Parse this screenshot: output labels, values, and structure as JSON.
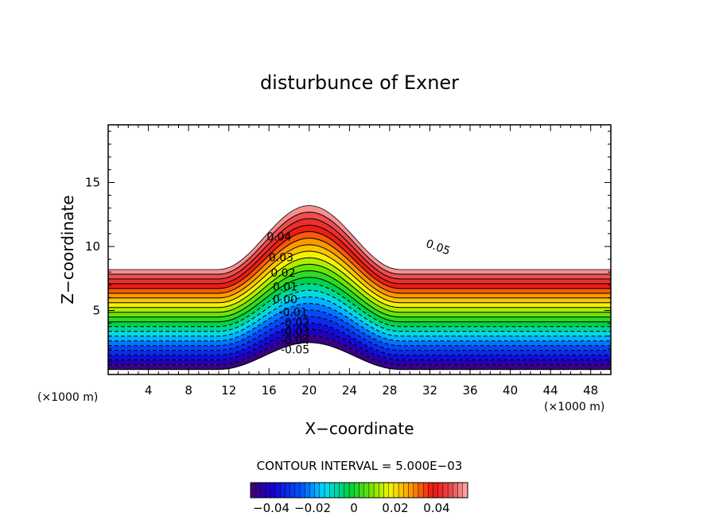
{
  "chart_data": {
    "type": "contour",
    "title": "disturbunce of Exner",
    "xlabel": "X−coordinate",
    "ylabel": "Z−coordinate",
    "x_unit": "(×1000 m)",
    "y_unit": "(×1000 m)",
    "xlim": [
      0,
      50
    ],
    "ylim": [
      0,
      19.5
    ],
    "x_ticks": [
      4,
      8,
      12,
      16,
      20,
      24,
      28,
      32,
      36,
      40,
      44,
      48
    ],
    "y_ticks": [
      5,
      10,
      15
    ],
    "contour_interval_label": "CONTOUR INTERVAL = 5.000E−03",
    "contour_interval": 0.005,
    "value_range": [
      -0.05,
      0.055
    ],
    "terrain": {
      "baseline_km": 0.4,
      "peak_height_km": 2.1,
      "peak_x_km": 20,
      "half_width_km": 9
    },
    "field_top": {
      "level_at_edges_km": 8.2,
      "level_at_peak_km": 13.2
    },
    "contour_labels": [
      {
        "text": "0.04",
        "x": 17.0,
        "z": 10.7
      },
      {
        "text": "0.03",
        "x": 17.2,
        "z": 9.1
      },
      {
        "text": "0.02",
        "x": 17.4,
        "z": 7.9
      },
      {
        "text": "0.01",
        "x": 17.6,
        "z": 6.8
      },
      {
        "text": "0.00",
        "x": 17.6,
        "z": 5.8
      },
      {
        "text": "-0.01",
        "x": 18.4,
        "z": 4.8
      },
      {
        "text": "-0.02",
        "x": 18.6,
        "z": 4.0
      },
      {
        "text": "-0.03",
        "x": 18.6,
        "z": 3.3
      },
      {
        "text": "-0.04",
        "x": 18.6,
        "z": 2.6
      },
      {
        "text": "-0.05",
        "x": 18.6,
        "z": 1.9
      },
      {
        "text": "0.05",
        "x": 32.8,
        "z": 9.9,
        "rotate": 20
      }
    ],
    "colorbar": {
      "min": -0.05,
      "max": 0.055,
      "ticks": [
        "−0.04",
        "−0.02",
        "0",
        "0.02",
        "0.04"
      ],
      "tick_values": [
        -0.04,
        -0.02,
        0,
        0.02,
        0.04
      ]
    }
  }
}
